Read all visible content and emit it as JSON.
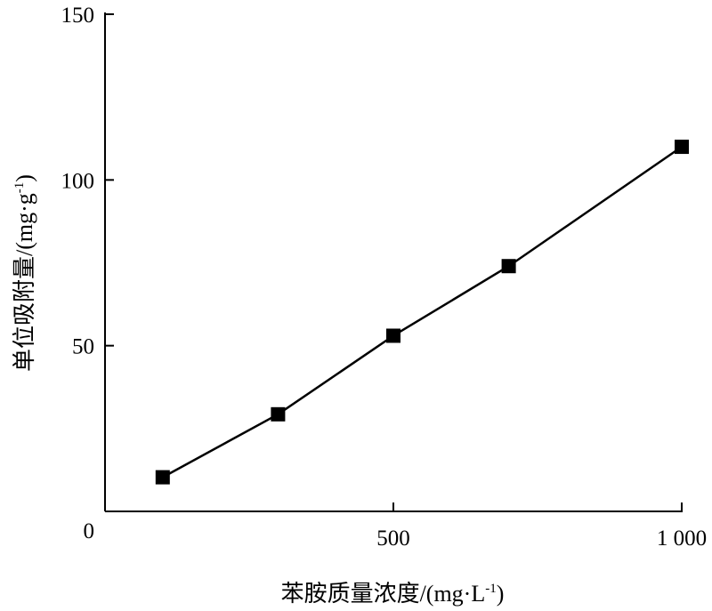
{
  "chart_data": {
    "type": "line",
    "x": [
      100,
      300,
      500,
      700,
      1000
    ],
    "series": [
      {
        "values": [
          10.3,
          29.3,
          53,
          74,
          110
        ],
        "marker": "square",
        "color": "#000000"
      }
    ],
    "xlabel_main": "苯胺质量浓度/(mg·L",
    "xlabel_sup": "-1",
    "xlabel_close": ")",
    "ylabel_main": "单位吸附量/(mg·g",
    "ylabel_sup": "-1",
    "ylabel_close": ")",
    "xlim": [
      0,
      1000
    ],
    "ylim": [
      0,
      150
    ],
    "xticks": [
      500,
      1000
    ],
    "xtick_labels": [
      "500",
      "1 000"
    ],
    "yticks": [
      0,
      50,
      100,
      150
    ],
    "ytick_labels": [
      "0",
      "50",
      "100",
      "150"
    ],
    "grid": false,
    "legend": "none"
  }
}
